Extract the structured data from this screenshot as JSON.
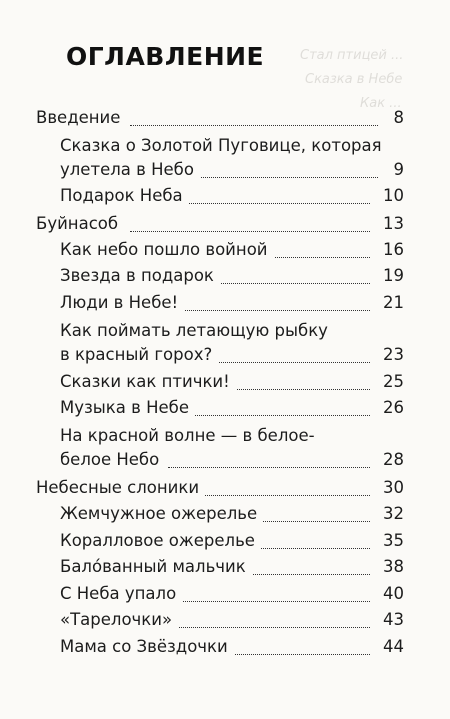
{
  "title": "ОГЛАВЛЕНИЕ",
  "entries": [
    {
      "label": "Введение",
      "page": "8",
      "level": 0
    },
    {
      "label_1": "Сказка о Золотой Пуговице, которая",
      "label": "улетела в Небо",
      "page": "9",
      "level": 1
    },
    {
      "label": "Подарок Неба",
      "page": "10",
      "level": 1
    },
    {
      "label": "Буйнасоб",
      "page": "13",
      "level": 0
    },
    {
      "label": "Как небо пошло войной",
      "page": "16",
      "level": 1
    },
    {
      "label": "Звезда в подарок",
      "page": "19",
      "level": 1
    },
    {
      "label": "Люди в Небе!",
      "page": "21",
      "level": 1
    },
    {
      "label_1": "Как поймать летающую рыбку",
      "label": "в красный горох?",
      "page": "23",
      "level": 1
    },
    {
      "label": "Сказки как птички!",
      "page": "25",
      "level": 1
    },
    {
      "label": "Музыка в Небе",
      "page": "26",
      "level": 1
    },
    {
      "label_1": "На красной волне — в белое-",
      "label": "белое Небо",
      "page": "28",
      "level": 1
    },
    {
      "label": "Небесные слоники",
      "page": "30",
      "level": 0
    },
    {
      "label": "Жемчужное ожерелье",
      "page": "32",
      "level": 1
    },
    {
      "label": "Коралловое ожерелье",
      "page": "35",
      "level": 1
    },
    {
      "label": "Бало́ванный мальчик",
      "page": "38",
      "level": 1
    },
    {
      "label": "С Неба упало",
      "page": "40",
      "level": 1
    },
    {
      "label": "«Тарелочки»",
      "page": "43",
      "level": 1
    },
    {
      "label": "Мама со Звёздочки",
      "page": "44",
      "level": 1
    }
  ]
}
